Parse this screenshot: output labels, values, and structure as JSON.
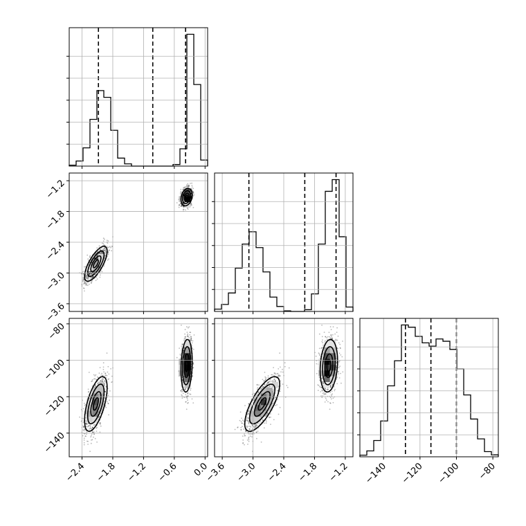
{
  "chart_data": {
    "type": "corner",
    "colors": {
      "line": "#000000",
      "grid": "#b0b0b0",
      "scatter": "#000000"
    },
    "variables": [
      {
        "range": [
          -2.65,
          0.05
        ],
        "ticks": [
          -2.4,
          -1.8,
          -1.2,
          -0.6,
          0.0
        ],
        "tick_labels": [
          "−2.4",
          "−1.8",
          "−1.2",
          "−0.6",
          "0.0"
        ],
        "quantiles": [
          -2.08,
          -1.02,
          -0.38
        ],
        "hist": {
          "edges": [
            -2.65,
            -2.515,
            -2.38,
            -2.245,
            -2.11,
            -1.975,
            -1.84,
            -1.705,
            -1.57,
            -1.435,
            -1.3,
            -1.165,
            -1.03,
            -0.895,
            -0.76,
            -0.625,
            -0.49,
            -0.355,
            -0.22,
            -0.085,
            0.05
          ],
          "counts": [
            3,
            16,
            57,
            146,
            236,
            215,
            112,
            25,
            7,
            0,
            0,
            0,
            0,
            0,
            0,
            5,
            54,
            412,
            255,
            19
          ]
        }
      },
      {
        "range": [
          -3.75,
          -1.05
        ],
        "ticks": [
          -3.6,
          -3.0,
          -2.4,
          -1.8,
          -1.2
        ],
        "tick_labels": [
          "−3.6",
          "−3.0",
          "−2.4",
          "−1.8",
          "−1.2"
        ],
        "quantiles": [
          -3.08,
          -1.99,
          -1.38
        ],
        "hist": {
          "edges": [
            -3.75,
            -3.615,
            -3.48,
            -3.345,
            -3.21,
            -3.075,
            -2.94,
            -2.805,
            -2.67,
            -2.535,
            -2.4,
            -2.265,
            -2.13,
            -1.995,
            -1.86,
            -1.725,
            -1.59,
            -1.455,
            -1.32,
            -1.185,
            -1.05
          ],
          "counts": [
            8,
            24,
            63,
            148,
            230,
            272,
            218,
            135,
            49,
            17,
            2,
            0,
            0,
            6,
            60,
            230,
            410,
            450,
            255,
            15
          ]
        }
      },
      {
        "range": [
          -153,
          -77
        ],
        "ticks": [
          -140,
          -120,
          -100,
          -80
        ],
        "tick_labels": [
          "−140",
          "−120",
          "−100",
          "−80"
        ],
        "quantiles": [
          -128,
          -114,
          -100
        ],
        "hist": {
          "edges": [
            -153,
            -149.2,
            -145.4,
            -141.6,
            -137.8,
            -134,
            -130.2,
            -126.4,
            -122.6,
            -118.8,
            -115,
            -111.2,
            -107.4,
            -103.6,
            -99.8,
            -96,
            -92.2,
            -88.4,
            -84.6,
            -80.8,
            -77
          ],
          "counts": [
            5,
            18,
            50,
            110,
            218,
            295,
            405,
            398,
            370,
            350,
            340,
            362,
            355,
            330,
            270,
            190,
            116,
            55,
            16,
            6
          ]
        }
      }
    ],
    "modes": [
      {
        "mean": [
          -2.13,
          -2.82,
          -124
        ],
        "sd": [
          0.11,
          0.17,
          7.5
        ],
        "corr": {
          "0-1": 0.72,
          "0-2": 0.6,
          "1-2": 0.72
        },
        "n": 1050
      },
      {
        "mean": [
          -0.36,
          -1.52,
          -103
        ],
        "sd": [
          0.055,
          0.085,
          7.2
        ],
        "corr": {
          "0-1": 0.25,
          "0-2": 0.15,
          "1-2": 0.18
        },
        "n": 1050
      }
    ]
  }
}
